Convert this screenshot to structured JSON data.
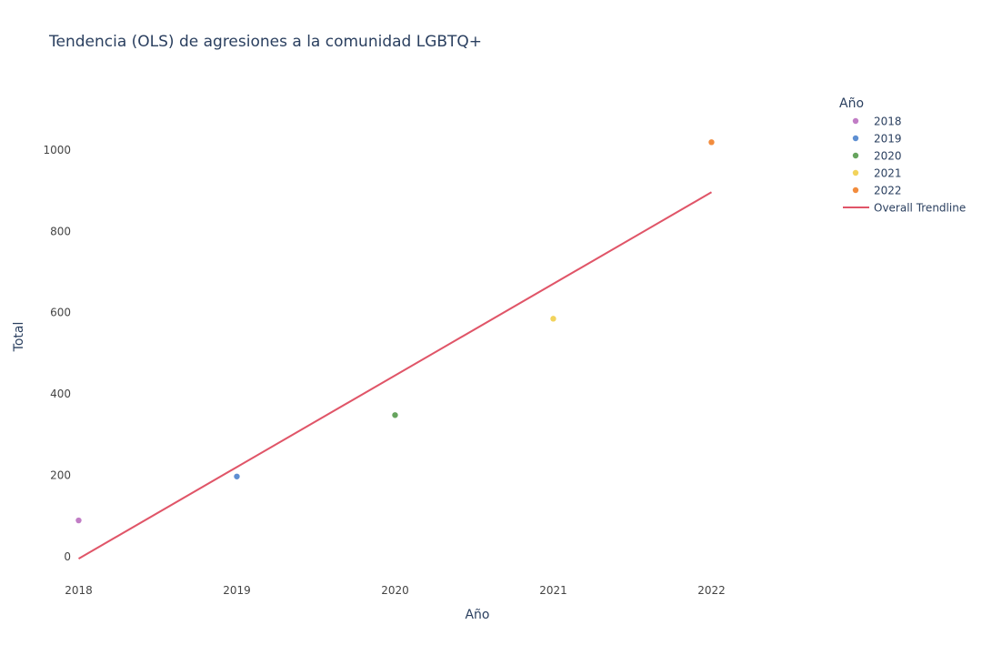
{
  "chart_data": {
    "type": "scatter",
    "title": "Tendencia (OLS) de agresiones a la comunidad LGBTQ+",
    "xlabel": "Año",
    "ylabel": "Total",
    "xlim": [
      2017.98,
      2022.98
    ],
    "ylim": [
      -64,
      1144
    ],
    "x_ticks": [
      2018,
      2019,
      2020,
      2021,
      2022
    ],
    "y_ticks": [
      0,
      200,
      400,
      600,
      800,
      1000
    ],
    "grid": false,
    "legend": {
      "title": "Año",
      "placement": "top-right"
    },
    "series": [
      {
        "name": "2018",
        "color": "#C17DC5",
        "x": [
          2018
        ],
        "y": [
          88
        ]
      },
      {
        "name": "2019",
        "color": "#5E8FD2",
        "x": [
          2019
        ],
        "y": [
          196
        ]
      },
      {
        "name": "2020",
        "color": "#66A45E",
        "x": [
          2020
        ],
        "y": [
          347
        ]
      },
      {
        "name": "2021",
        "color": "#F2D35B",
        "x": [
          2021
        ],
        "y": [
          584
        ]
      },
      {
        "name": "2022",
        "color": "#F28C3D",
        "x": [
          2022
        ],
        "y": [
          1018
        ]
      }
    ],
    "trendline": {
      "name": "Overall Trendline",
      "color": "#E05568",
      "x": [
        2018,
        2022
      ],
      "y": [
        -6,
        895
      ]
    }
  }
}
